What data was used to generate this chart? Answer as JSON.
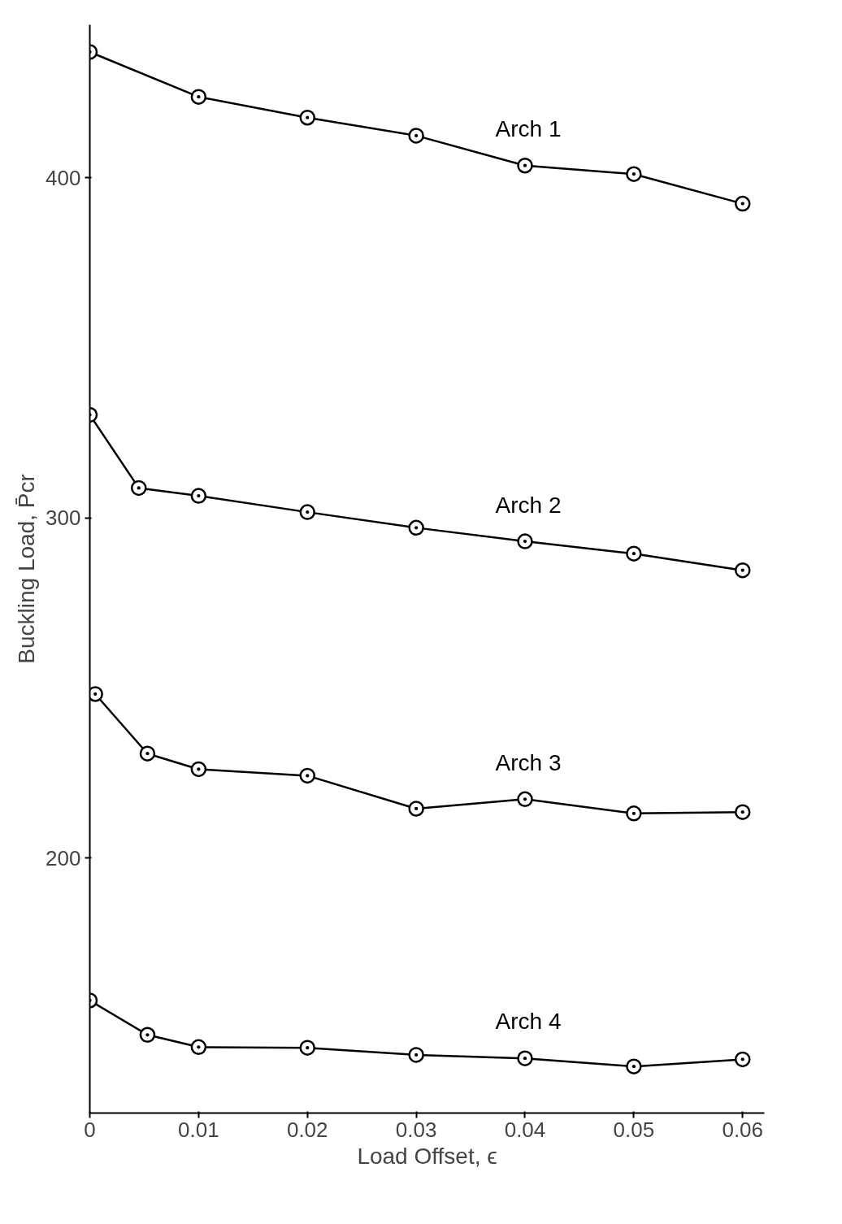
{
  "chart_data": {
    "type": "line",
    "xlabel": "Load Offset, ϵ",
    "ylabel": "Buckling Load, P̄cr",
    "xlim": [
      0,
      0.062
    ],
    "xticks": [
      0,
      0.01,
      0.02,
      0.03,
      0.04,
      0.05,
      0.06
    ],
    "ylim": [
      125,
      445
    ],
    "yticks": [
      200,
      300,
      400
    ],
    "grid": false,
    "marker": "circle",
    "line_style": "solid",
    "series": [
      {
        "name": "Arch 1",
        "color": "#000000",
        "x": [
          0,
          0.01,
          0.02,
          0.03,
          0.04,
          0.05,
          0.06
        ],
        "values": [
          437,
          423.8,
          417.7,
          412.4,
          403.6,
          401.1,
          392.4
        ]
      },
      {
        "name": "Arch 2",
        "color": "#000000",
        "x": [
          0,
          0.0045,
          0.01,
          0.02,
          0.03,
          0.04,
          0.05,
          0.06
        ],
        "values": [
          330.3,
          308.8,
          306.5,
          301.7,
          297.1,
          293.1,
          289.5,
          284.6
        ]
      },
      {
        "name": "Arch 3",
        "color": "#000000",
        "x": [
          0.0005,
          0.0053,
          0.01,
          0.02,
          0.03,
          0.04,
          0.05,
          0.06
        ],
        "values": [
          248.2,
          230.7,
          226.1,
          224.2,
          214.5,
          217.3,
          213.1,
          213.5
        ]
      },
      {
        "name": "Arch 4",
        "color": "#000000",
        "x": [
          0,
          0.0053,
          0.01,
          0.02,
          0.03,
          0.04,
          0.05,
          0.06
        ],
        "values": [
          158.1,
          148.0,
          144.4,
          144.2,
          142.1,
          141.1,
          138.7,
          140.8
        ]
      }
    ]
  }
}
